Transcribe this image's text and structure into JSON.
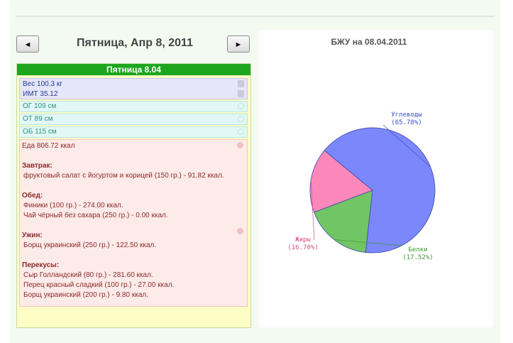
{
  "header": {
    "prev_label": "◄",
    "next_label": "►",
    "date_title": "Пятница, Апр 8, 2011"
  },
  "day_panel": {
    "title": "Пятница 8.04",
    "weight": "Вес 100.3 кг",
    "bmi": "ИМТ 35.12",
    "og": "ОГ 109 см",
    "ot": "ОТ 89 см",
    "ob": "ОБ 115 см",
    "food_total": "Еда 806.72 ккал",
    "meals": [
      {
        "name": "Завтрак:",
        "items": [
          "фруктовый салат с йогуртом и корицей (150 гр.) - 91.82 ккал."
        ]
      },
      {
        "name": "Обед:",
        "items": [
          "Финики (100 гр.) - 274.00 ккал.",
          "Чай чёрный без сахара (250 гр.) - 0.00 ккал."
        ]
      },
      {
        "name": "Ужин:",
        "items": [
          "Борщ украинский (250 гр.) - 122.50 ккал."
        ]
      },
      {
        "name": "Перекусы:",
        "items": [
          "Сыр Голландский (80 гр.) - 281.60 ккал.",
          "Перец красный сладкий (100 гр.) - 27.00 ккал.",
          "Борщ украинский (200 гр.) - 9.80 ккал."
        ]
      }
    ]
  },
  "chart_data": {
    "type": "pie",
    "title": "БЖУ на 08.04.2011",
    "slices": [
      {
        "label": "Углеводы",
        "pct_label": "(65.78%)",
        "value": 65.78,
        "color": "#7b87fb",
        "label_color": "#3a4cc6"
      },
      {
        "label": "Белки",
        "pct_label": "(17.52%)",
        "value": 17.52,
        "color": "#72c565",
        "label_color": "#3c9a32"
      },
      {
        "label": "Жиры",
        "pct_label": "(16.70%)",
        "value": 16.7,
        "color": "#fb87bb",
        "label_color": "#d74a88"
      }
    ]
  }
}
